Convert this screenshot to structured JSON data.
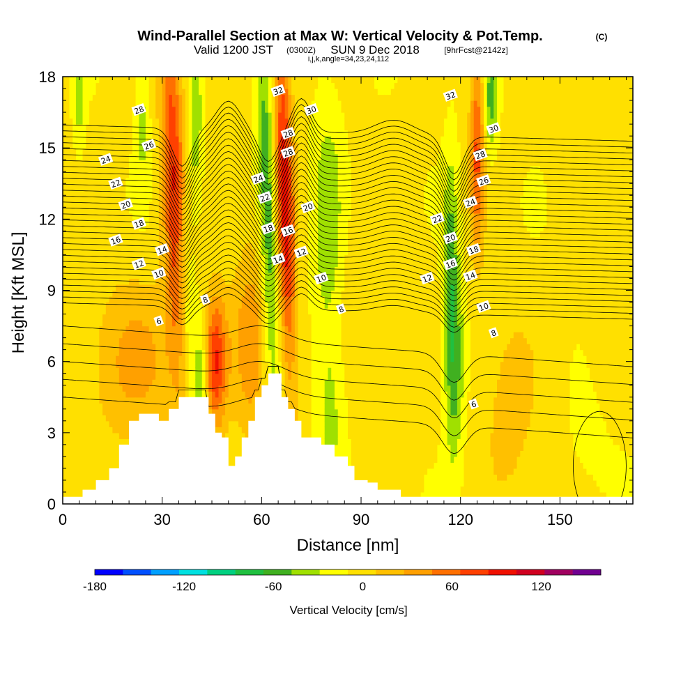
{
  "chart_data": {
    "type": "heatmap",
    "title": "Wind-Parallel Section at Max W: Vertical Velocity & Pot.Temp.",
    "title_suffix": "(C)",
    "subtitle_valid": "Valid 1200 JST",
    "subtitle_utc": "(0300Z)",
    "subtitle_date": "SUN 9 Dec 2018",
    "subtitle_fcst": "[9hrFcst@2142z]",
    "subtitle_ijk": "i,j,k,angle=34,23,24,112",
    "xlabel": "Distance [nm]",
    "ylabel": "Height [Kft MSL]",
    "xlim": [
      0,
      172
    ],
    "ylim": [
      0,
      18
    ],
    "x_ticks": [
      0,
      30,
      60,
      90,
      120,
      150
    ],
    "y_ticks": [
      0,
      3,
      6,
      9,
      12,
      15,
      18
    ],
    "colorbar": {
      "label": "Vertical Velocity [cm/s]",
      "range": [
        -180,
        160
      ],
      "step": 20,
      "tick_labels": [
        -180,
        -120,
        -60,
        0,
        60,
        120
      ],
      "colors": [
        "#0000ff",
        "#0050ff",
        "#00a0ff",
        "#00e0e0",
        "#00d080",
        "#20c040",
        "#40b020",
        "#a0e000",
        "#ffff00",
        "#ffe000",
        "#ffc000",
        "#ffa000",
        "#ff7000",
        "#ff4000",
        "#f01000",
        "#d00020",
        "#a00060",
        "#700090"
      ]
    },
    "terrain_profile": {
      "x": [
        0,
        6,
        8,
        10,
        12,
        14,
        17,
        20,
        23,
        26,
        29,
        32,
        35,
        38,
        41,
        44,
        46,
        48,
        50,
        52,
        54,
        56,
        58,
        60,
        62,
        64,
        66,
        68,
        70,
        72,
        74,
        76,
        78,
        80,
        82,
        84,
        86,
        88,
        90,
        92,
        95,
        98,
        100,
        102,
        105,
        172
      ],
      "height": [
        0.3,
        0.6,
        0.6,
        1.0,
        1.0,
        1.5,
        2.5,
        3.5,
        3.8,
        3.8,
        3.5,
        4.0,
        4.5,
        4.5,
        4.5,
        3.8,
        3.0,
        2.8,
        1.6,
        2.0,
        2.8,
        3.5,
        4.5,
        5.0,
        5.5,
        5.5,
        4.5,
        4.0,
        3.5,
        2.8,
        2.8,
        2.8,
        2.5,
        2.5,
        2.0,
        2.0,
        1.6,
        1.0,
        1.0,
        0.9,
        0.6,
        0.6,
        0.6,
        0.3,
        0.3,
        0.3
      ]
    },
    "velocity_features": [
      {
        "x": 34,
        "y": 13,
        "sx": 2.5,
        "sy": 5.5,
        "value": 110,
        "tilt": -0.25
      },
      {
        "x": 37,
        "y": 9,
        "sx": 2.0,
        "sy": 4.0,
        "value": -60,
        "tilt": -0.25
      },
      {
        "x": 42,
        "y": 5,
        "sx": 1.5,
        "sy": 2.0,
        "value": -55,
        "tilt": 0
      },
      {
        "x": 46,
        "y": 6,
        "sx": 2.5,
        "sy": 2.0,
        "value": 95,
        "tilt": 0
      },
      {
        "x": 40,
        "y": 16,
        "sx": 1.5,
        "sy": 2.5,
        "value": -40,
        "tilt": 0
      },
      {
        "x": 24,
        "y": 16,
        "sx": 1.5,
        "sy": 2.0,
        "value": -30,
        "tilt": 0
      },
      {
        "x": 5,
        "y": 17,
        "sx": 1.2,
        "sy": 1.5,
        "value": -30,
        "tilt": 0
      },
      {
        "x": 62,
        "y": 12,
        "sx": 2.0,
        "sy": 6.0,
        "value": -65,
        "tilt": -0.2
      },
      {
        "x": 67,
        "y": 13,
        "sx": 2.0,
        "sy": 5.5,
        "value": 110,
        "tilt": -0.2
      },
      {
        "x": 80,
        "y": 12,
        "sx": 3.0,
        "sy": 3.5,
        "value": -40,
        "tilt": 0
      },
      {
        "x": 81,
        "y": 4,
        "sx": 3.0,
        "sy": 2.5,
        "value": -30,
        "tilt": 0
      },
      {
        "x": 118,
        "y": 6,
        "sx": 2.0,
        "sy": 3.0,
        "value": -60,
        "tilt": 0
      },
      {
        "x": 117,
        "y": 11,
        "sx": 1.5,
        "sy": 3.0,
        "value": -40,
        "tilt": 0
      },
      {
        "x": 125,
        "y": 15,
        "sx": 1.5,
        "sy": 3.0,
        "value": 80,
        "tilt": 0
      },
      {
        "x": 129,
        "y": 17,
        "sx": 1.5,
        "sy": 1.5,
        "value": -50,
        "tilt": 0
      },
      {
        "x": 22,
        "y": 6,
        "sx": 10,
        "sy": 2.5,
        "value": 40,
        "tilt": 0
      },
      {
        "x": 57,
        "y": 7,
        "sx": 4,
        "sy": 3.0,
        "value": 50,
        "tilt": 0
      },
      {
        "x": 95,
        "y": 8,
        "sx": 8,
        "sy": 3.0,
        "value": 15,
        "tilt": 0
      },
      {
        "x": 135,
        "y": 4,
        "sx": 6,
        "sy": 3.0,
        "value": 25,
        "tilt": 0
      },
      {
        "x": 160,
        "y": 2,
        "sx": 6,
        "sy": 2.0,
        "value": -10,
        "tilt": 0
      },
      {
        "x": 165,
        "y": 12,
        "sx": 6,
        "sy": 5.0,
        "value": 12,
        "tilt": 0
      }
    ],
    "theta_contours": {
      "step": 2,
      "levels_labeled": [
        6,
        8,
        10,
        12,
        14,
        16,
        18,
        20,
        22,
        24,
        26,
        28,
        30,
        32
      ]
    },
    "contour_labels": [
      {
        "text": "28",
        "x": 23,
        "y": 16.6
      },
      {
        "text": "26",
        "x": 26,
        "y": 15.1
      },
      {
        "text": "24",
        "x": 13,
        "y": 14.5
      },
      {
        "text": "22",
        "x": 16,
        "y": 13.5
      },
      {
        "text": "20",
        "x": 19,
        "y": 12.6
      },
      {
        "text": "18",
        "x": 23,
        "y": 11.8
      },
      {
        "text": "16",
        "x": 16,
        "y": 11.1
      },
      {
        "text": "14",
        "x": 30,
        "y": 10.7
      },
      {
        "text": "12",
        "x": 23,
        "y": 10.1
      },
      {
        "text": "10",
        "x": 29,
        "y": 9.7
      },
      {
        "text": "8",
        "x": 43,
        "y": 8.6
      },
      {
        "text": "6",
        "x": 29,
        "y": 7.7
      },
      {
        "text": "32",
        "x": 65,
        "y": 17.4
      },
      {
        "text": "30",
        "x": 75,
        "y": 16.6
      },
      {
        "text": "28",
        "x": 68,
        "y": 15.6
      },
      {
        "text": "28",
        "x": 68,
        "y": 14.8
      },
      {
        "text": "24",
        "x": 59,
        "y": 13.7
      },
      {
        "text": "22",
        "x": 61,
        "y": 12.9
      },
      {
        "text": "20",
        "x": 74,
        "y": 12.5
      },
      {
        "text": "18",
        "x": 62,
        "y": 11.6
      },
      {
        "text": "16",
        "x": 68,
        "y": 11.5
      },
      {
        "text": "14",
        "x": 65,
        "y": 10.3
      },
      {
        "text": "12",
        "x": 72,
        "y": 10.6
      },
      {
        "text": "10",
        "x": 78,
        "y": 9.5
      },
      {
        "text": "8",
        "x": 84,
        "y": 8.2
      },
      {
        "text": "32",
        "x": 117,
        "y": 17.2
      },
      {
        "text": "30",
        "x": 130,
        "y": 15.8
      },
      {
        "text": "28",
        "x": 126,
        "y": 14.7
      },
      {
        "text": "26",
        "x": 127,
        "y": 13.6
      },
      {
        "text": "24",
        "x": 123,
        "y": 12.7
      },
      {
        "text": "22",
        "x": 113,
        "y": 12.0
      },
      {
        "text": "20",
        "x": 117,
        "y": 11.2
      },
      {
        "text": "18",
        "x": 124,
        "y": 10.7
      },
      {
        "text": "16",
        "x": 117,
        "y": 10.1
      },
      {
        "text": "14",
        "x": 123,
        "y": 9.6
      },
      {
        "text": "12",
        "x": 110,
        "y": 9.5
      },
      {
        "text": "10",
        "x": 127,
        "y": 8.3
      },
      {
        "text": "8",
        "x": 130,
        "y": 7.2
      },
      {
        "text": "6",
        "x": 124,
        "y": 4.2
      }
    ]
  }
}
